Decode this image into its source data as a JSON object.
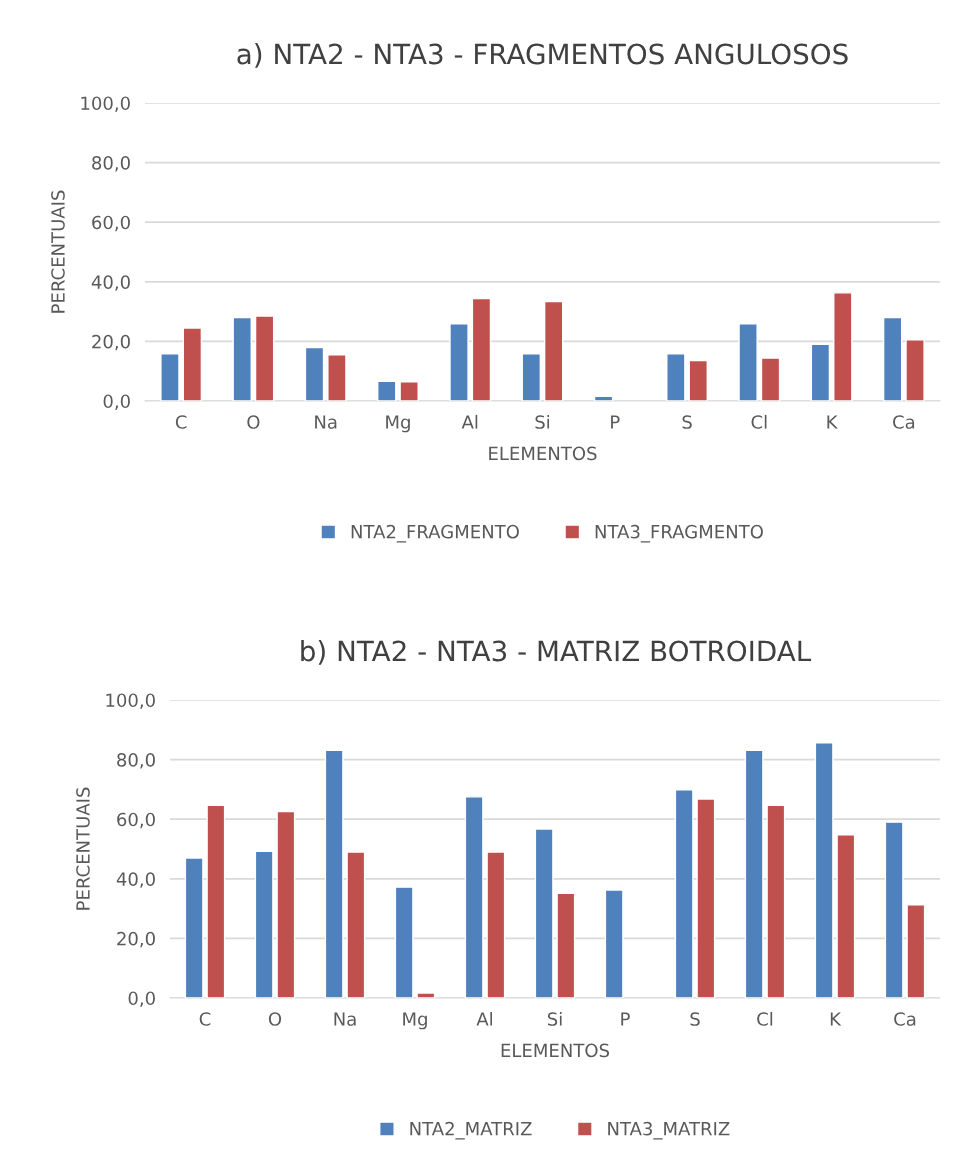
{
  "chart_data": [
    {
      "type": "bar",
      "title": "a) NTA2 - NTA3 - FRAGMENTOS ANGULOSOS",
      "xlabel": "ELEMENTOS",
      "ylabel": "PERCENTUAIS",
      "categories": [
        "C",
        "O",
        "Na",
        "Mg",
        "Al",
        "Si",
        "P",
        "S",
        "Cl",
        "K",
        "Ca"
      ],
      "series": [
        {
          "name": "NTA2_FRAGMENTO",
          "color": "#4f81bd",
          "values": [
            15.8,
            28.0,
            17.9,
            6.6,
            25.9,
            15.8,
            1.6,
            15.8,
            25.9,
            19.0,
            28.0
          ]
        },
        {
          "name": "NTA3_FRAGMENTO",
          "color": "#c0504d",
          "values": [
            24.5,
            28.5,
            15.5,
            6.4,
            34.4,
            33.4,
            null,
            13.6,
            14.4,
            36.3,
            20.5
          ]
        }
      ],
      "ylim": [
        0,
        100
      ],
      "yticks": [
        {
          "value": 0,
          "label": "0,0"
        },
        {
          "value": 20,
          "label": "20,0"
        },
        {
          "value": 40,
          "label": "40,0"
        },
        {
          "value": 60,
          "label": "60,0"
        },
        {
          "value": 80,
          "label": "80,0"
        },
        {
          "value": 100,
          "label": "100,0"
        }
      ],
      "grid": "y",
      "legend": "bottom"
    },
    {
      "type": "bar",
      "title": "b) NTA2 - NTA3 - MATRIZ BOTROIDAL",
      "xlabel": "ELEMENTOS",
      "ylabel": "PERCENTUAIS",
      "categories": [
        "C",
        "O",
        "Na",
        "Mg",
        "Al",
        "Si",
        "P",
        "S",
        "Cl",
        "K",
        "Ca"
      ],
      "series": [
        {
          "name": "NTA2_MATRIZ",
          "color": "#4f81bd",
          "values": [
            47.0,
            49.2,
            83.1,
            37.2,
            67.5,
            56.7,
            36.2,
            69.9,
            83.1,
            85.6,
            59.0
          ]
        },
        {
          "name": "NTA3_MATRIZ",
          "color": "#c0504d",
          "values": [
            64.7,
            62.6,
            49.0,
            1.7,
            49.0,
            35.1,
            null,
            66.8,
            64.7,
            54.8,
            31.3
          ]
        }
      ],
      "ylim": [
        0,
        100
      ],
      "yticks": [
        {
          "value": 0,
          "label": "0,0"
        },
        {
          "value": 20,
          "label": "20,0"
        },
        {
          "value": 40,
          "label": "40,0"
        },
        {
          "value": 60,
          "label": "60,0"
        },
        {
          "value": 80,
          "label": "80,0"
        },
        {
          "value": 100,
          "label": "100,0"
        }
      ],
      "grid": "y",
      "legend": "bottom"
    }
  ]
}
